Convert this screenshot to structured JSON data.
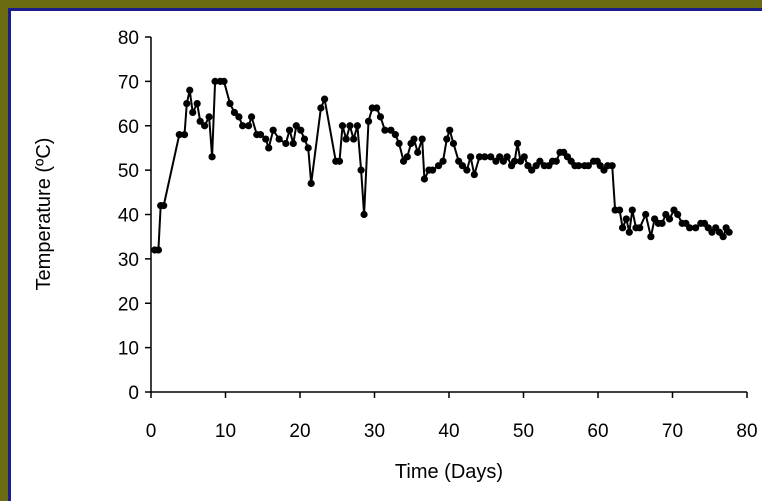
{
  "chart_data": {
    "type": "line",
    "xlabel": "Time (Days)",
    "ylabel": "Temperature (ºC)",
    "xlim": [
      0,
      80
    ],
    "ylim": [
      0,
      80
    ],
    "xticks": [
      0,
      10,
      20,
      30,
      40,
      50,
      60,
      70,
      80
    ],
    "yticks": [
      0,
      10,
      20,
      30,
      40,
      50,
      60,
      70,
      80
    ],
    "grid": false,
    "marker": "circle",
    "series": [
      {
        "color": "#000000",
        "points": [
          [
            0.5,
            32
          ],
          [
            1,
            32
          ],
          [
            1.3,
            42
          ],
          [
            1.7,
            42
          ],
          [
            3.8,
            58
          ],
          [
            4.5,
            58
          ],
          [
            4.8,
            65
          ],
          [
            5.2,
            68
          ],
          [
            5.6,
            63
          ],
          [
            6.2,
            65
          ],
          [
            6.6,
            61
          ],
          [
            7.2,
            60
          ],
          [
            7.8,
            62
          ],
          [
            8.2,
            53
          ],
          [
            8.6,
            70
          ],
          [
            9.3,
            70
          ],
          [
            9.8,
            70
          ],
          [
            10.6,
            65
          ],
          [
            11.2,
            63
          ],
          [
            11.8,
            62
          ],
          [
            12.3,
            60
          ],
          [
            13.1,
            60
          ],
          [
            13.5,
            62
          ],
          [
            14.2,
            58
          ],
          [
            14.7,
            58
          ],
          [
            15.4,
            57
          ],
          [
            15.8,
            55
          ],
          [
            16.4,
            59
          ],
          [
            17.2,
            57
          ],
          [
            18.1,
            56
          ],
          [
            18.6,
            59
          ],
          [
            19.1,
            56
          ],
          [
            19.5,
            60
          ],
          [
            20.1,
            59
          ],
          [
            20.6,
            57
          ],
          [
            21.1,
            55
          ],
          [
            21.5,
            47
          ],
          [
            22.8,
            64
          ],
          [
            23.3,
            66
          ],
          [
            24.8,
            52
          ],
          [
            25.3,
            52
          ],
          [
            25.7,
            60
          ],
          [
            26.2,
            57
          ],
          [
            26.7,
            60
          ],
          [
            27.2,
            57
          ],
          [
            27.7,
            60
          ],
          [
            28.2,
            50
          ],
          [
            28.6,
            40
          ],
          [
            29.2,
            61
          ],
          [
            29.7,
            64
          ],
          [
            30.3,
            64
          ],
          [
            30.8,
            62
          ],
          [
            31.4,
            59
          ],
          [
            32.2,
            59
          ],
          [
            32.8,
            58
          ],
          [
            33.3,
            56
          ],
          [
            33.9,
            52
          ],
          [
            34.4,
            53
          ],
          [
            34.9,
            56
          ],
          [
            35.3,
            57
          ],
          [
            35.8,
            54
          ],
          [
            36.4,
            57
          ],
          [
            36.7,
            48
          ],
          [
            37.3,
            50
          ],
          [
            37.8,
            50
          ],
          [
            38.6,
            51
          ],
          [
            39.2,
            52
          ],
          [
            39.7,
            57
          ],
          [
            40.1,
            59
          ],
          [
            40.6,
            56
          ],
          [
            41.3,
            52
          ],
          [
            41.8,
            51
          ],
          [
            42.4,
            50
          ],
          [
            42.9,
            53
          ],
          [
            43.4,
            49
          ],
          [
            44.1,
            53
          ],
          [
            44.8,
            53
          ],
          [
            45.6,
            53
          ],
          [
            46.3,
            52
          ],
          [
            46.8,
            53
          ],
          [
            47.3,
            52
          ],
          [
            47.8,
            53
          ],
          [
            48.4,
            51
          ],
          [
            48.8,
            52
          ],
          [
            49.2,
            56
          ],
          [
            49.6,
            52
          ],
          [
            50.1,
            53
          ],
          [
            50.6,
            51
          ],
          [
            51.1,
            50
          ],
          [
            51.7,
            51
          ],
          [
            52.2,
            52
          ],
          [
            52.8,
            51
          ],
          [
            53.4,
            51
          ],
          [
            53.9,
            52
          ],
          [
            54.4,
            52
          ],
          [
            54.9,
            54
          ],
          [
            55.4,
            54
          ],
          [
            55.9,
            53
          ],
          [
            56.4,
            52
          ],
          [
            56.9,
            51
          ],
          [
            57.4,
            51
          ],
          [
            58.2,
            51
          ],
          [
            58.7,
            51
          ],
          [
            59.4,
            52
          ],
          [
            59.9,
            52
          ],
          [
            60.3,
            51
          ],
          [
            60.8,
            50
          ],
          [
            61.3,
            51
          ],
          [
            61.9,
            51
          ],
          [
            62.3,
            41
          ],
          [
            62.9,
            41
          ],
          [
            63.3,
            37
          ],
          [
            63.8,
            39
          ],
          [
            64.2,
            36
          ],
          [
            64.6,
            41
          ],
          [
            65.1,
            37
          ],
          [
            65.6,
            37
          ],
          [
            66.4,
            40
          ],
          [
            67.1,
            35
          ],
          [
            67.6,
            39
          ],
          [
            68.1,
            38
          ],
          [
            68.6,
            38
          ],
          [
            69.1,
            40
          ],
          [
            69.6,
            39
          ],
          [
            70.2,
            41
          ],
          [
            70.7,
            40
          ],
          [
            71.3,
            38
          ],
          [
            71.8,
            38
          ],
          [
            72.3,
            37
          ],
          [
            73.1,
            37
          ],
          [
            73.8,
            38
          ],
          [
            74.3,
            38
          ],
          [
            74.8,
            37
          ],
          [
            75.3,
            36
          ],
          [
            75.8,
            37
          ],
          [
            76.3,
            36
          ],
          [
            76.8,
            35
          ],
          [
            77.2,
            37
          ],
          [
            77.6,
            36
          ]
        ]
      }
    ]
  }
}
